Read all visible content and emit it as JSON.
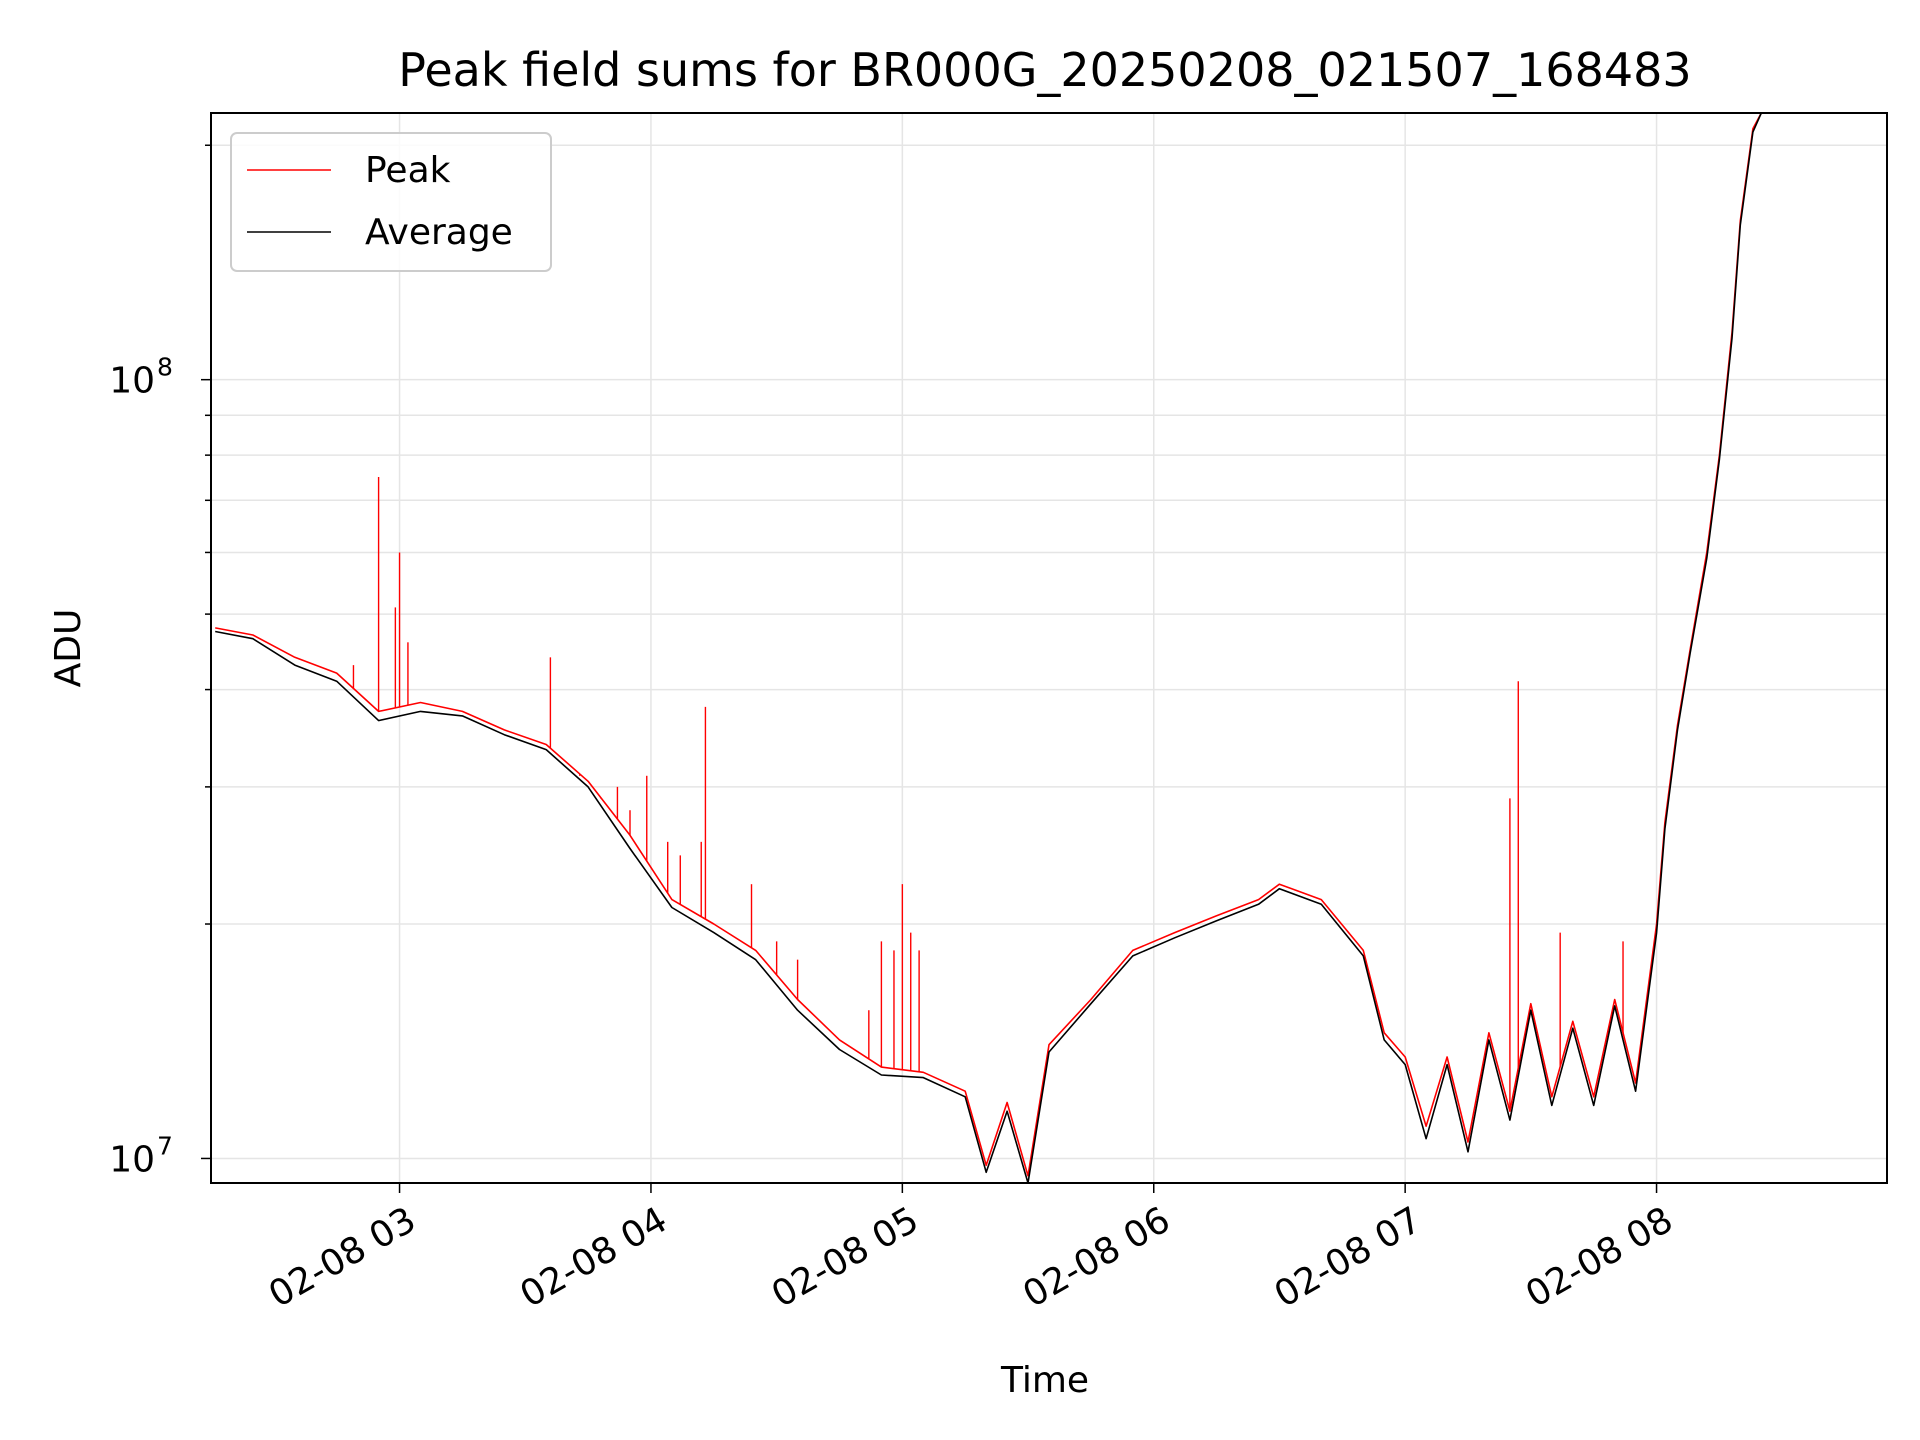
{
  "chart_data": {
    "type": "line",
    "title": "Peak field sums for BR000G_20250208_021507_168483",
    "xlabel": "Time",
    "ylabel": "ADU",
    "yscale": "log",
    "xlim": [
      "2025-02-08 02:15",
      "2025-02-08 08:55"
    ],
    "ylim": [
      9300000,
      220000000
    ],
    "grid": true,
    "legend": {
      "placement": "top-left"
    },
    "xticks": [
      {
        "value": "2025-02-08 03:00",
        "label": "02-08 03"
      },
      {
        "value": "2025-02-08 04:00",
        "label": "02-08 04"
      },
      {
        "value": "2025-02-08 05:00",
        "label": "02-08 05"
      },
      {
        "value": "2025-02-08 06:00",
        "label": "02-08 06"
      },
      {
        "value": "2025-02-08 07:00",
        "label": "02-08 07"
      },
      {
        "value": "2025-02-08 08:00",
        "label": "02-08 08"
      }
    ],
    "yticks": [
      {
        "value": 10000000,
        "base": "10",
        "exp": "7"
      },
      {
        "value": 100000000,
        "base": "10",
        "exp": "8"
      }
    ],
    "series": [
      {
        "name": "Peak",
        "color": "#ff0000",
        "points": [
          [
            "2025-02-08 02:16",
            48000000
          ],
          [
            "2025-02-08 02:25",
            47000000
          ],
          [
            "2025-02-08 02:35",
            44000000
          ],
          [
            "2025-02-08 02:45",
            42000000
          ],
          [
            "2025-02-08 02:55",
            37500000
          ],
          [
            "2025-02-08 03:05",
            38500000
          ],
          [
            "2025-02-08 03:15",
            37500000
          ],
          [
            "2025-02-08 03:25",
            35500000
          ],
          [
            "2025-02-08 03:35",
            34000000
          ],
          [
            "2025-02-08 03:45",
            30500000
          ],
          [
            "2025-02-08 03:55",
            26000000
          ],
          [
            "2025-02-08 04:05",
            21500000
          ],
          [
            "2025-02-08 04:15",
            20000000
          ],
          [
            "2025-02-08 04:25",
            18500000
          ],
          [
            "2025-02-08 04:35",
            16000000
          ],
          [
            "2025-02-08 04:45",
            14200000
          ],
          [
            "2025-02-08 04:55",
            13100000
          ],
          [
            "2025-02-08 05:05",
            12900000
          ],
          [
            "2025-02-08 05:15",
            12200000
          ],
          [
            "2025-02-08 05:20",
            9800000
          ],
          [
            "2025-02-08 05:25",
            11800000
          ],
          [
            "2025-02-08 05:30",
            9500000
          ],
          [
            "2025-02-08 05:35",
            14000000
          ],
          [
            "2025-02-08 05:45",
            16000000
          ],
          [
            "2025-02-08 05:55",
            18500000
          ],
          [
            "2025-02-08 06:05",
            19500000
          ],
          [
            "2025-02-08 06:15",
            20500000
          ],
          [
            "2025-02-08 06:25",
            21500000
          ],
          [
            "2025-02-08 06:30",
            22500000
          ],
          [
            "2025-02-08 06:40",
            21500000
          ],
          [
            "2025-02-08 06:50",
            18500000
          ],
          [
            "2025-02-08 06:55",
            14500000
          ],
          [
            "2025-02-08 07:00",
            13500000
          ],
          [
            "2025-02-08 07:05",
            11000000
          ],
          [
            "2025-02-08 07:10",
            13500000
          ],
          [
            "2025-02-08 07:15",
            10500000
          ],
          [
            "2025-02-08 07:20",
            14500000
          ],
          [
            "2025-02-08 07:25",
            11500000
          ],
          [
            "2025-02-08 07:30",
            15800000
          ],
          [
            "2025-02-08 07:35",
            12000000
          ],
          [
            "2025-02-08 07:40",
            15000000
          ],
          [
            "2025-02-08 07:45",
            12000000
          ],
          [
            "2025-02-08 07:50",
            16000000
          ],
          [
            "2025-02-08 07:55",
            12500000
          ],
          [
            "2025-02-08 08:00",
            20000000
          ],
          [
            "2025-02-08 08:02",
            27000000
          ],
          [
            "2025-02-08 08:05",
            36000000
          ],
          [
            "2025-02-08 08:08",
            45000000
          ],
          [
            "2025-02-08 08:12",
            60000000
          ],
          [
            "2025-02-08 08:15",
            80000000
          ],
          [
            "2025-02-08 08:18",
            115000000
          ],
          [
            "2025-02-08 08:20",
            160000000
          ],
          [
            "2025-02-08 08:23",
            210000000
          ],
          [
            "2025-02-08 08:25",
            220000000
          ]
        ],
        "spikes": [
          [
            "2025-02-08 02:55",
            75000000
          ],
          [
            "2025-02-08 03:00",
            60000000
          ],
          [
            "2025-02-08 02:59",
            51000000
          ],
          [
            "2025-02-08 03:02",
            46000000
          ],
          [
            "2025-02-08 02:49",
            43000000
          ],
          [
            "2025-02-08 03:36",
            44000000
          ],
          [
            "2025-02-08 03:43",
            31000000
          ],
          [
            "2025-02-08 03:48",
            29000000
          ],
          [
            "2025-02-08 03:52",
            30000000
          ],
          [
            "2025-02-08 03:55",
            28000000
          ],
          [
            "2025-02-08 03:59",
            31000000
          ],
          [
            "2025-02-08 04:13",
            38000000
          ],
          [
            "2025-02-08 04:12",
            25500000
          ],
          [
            "2025-02-08 04:07",
            24500000
          ],
          [
            "2025-02-08 04:04",
            25500000
          ],
          [
            "2025-02-08 04:24",
            22500000
          ],
          [
            "2025-02-08 04:30",
            19000000
          ],
          [
            "2025-02-08 04:35",
            18000000
          ],
          [
            "2025-02-08 04:52",
            15500000
          ],
          [
            "2025-02-08 04:55",
            19000000
          ],
          [
            "2025-02-08 04:58",
            18500000
          ],
          [
            "2025-02-08 05:00",
            22500000
          ],
          [
            "2025-02-08 05:02",
            19500000
          ],
          [
            "2025-02-08 05:04",
            18500000
          ],
          [
            "2025-02-08 07:25",
            29000000
          ],
          [
            "2025-02-08 07:27",
            41000000
          ],
          [
            "2025-02-08 07:37",
            19500000
          ],
          [
            "2025-02-08 07:52",
            19000000
          ]
        ]
      },
      {
        "name": "Average",
        "color": "#000000",
        "points": [
          [
            "2025-02-08 02:16",
            47500000
          ],
          [
            "2025-02-08 02:25",
            46500000
          ],
          [
            "2025-02-08 02:35",
            43000000
          ],
          [
            "2025-02-08 02:45",
            41000000
          ],
          [
            "2025-02-08 02:55",
            36500000
          ],
          [
            "2025-02-08 03:05",
            37500000
          ],
          [
            "2025-02-08 03:15",
            37000000
          ],
          [
            "2025-02-08 03:25",
            35000000
          ],
          [
            "2025-02-08 03:35",
            33500000
          ],
          [
            "2025-02-08 03:45",
            30000000
          ],
          [
            "2025-02-08 03:55",
            25000000
          ],
          [
            "2025-02-08 04:05",
            21000000
          ],
          [
            "2025-02-08 04:15",
            19500000
          ],
          [
            "2025-02-08 04:25",
            18000000
          ],
          [
            "2025-02-08 04:35",
            15500000
          ],
          [
            "2025-02-08 04:45",
            13800000
          ],
          [
            "2025-02-08 04:55",
            12800000
          ],
          [
            "2025-02-08 05:05",
            12700000
          ],
          [
            "2025-02-08 05:15",
            12000000
          ],
          [
            "2025-02-08 05:20",
            9600000
          ],
          [
            "2025-02-08 05:25",
            11500000
          ],
          [
            "2025-02-08 05:30",
            9300000
          ],
          [
            "2025-02-08 05:35",
            13700000
          ],
          [
            "2025-02-08 05:45",
            15800000
          ],
          [
            "2025-02-08 05:55",
            18200000
          ],
          [
            "2025-02-08 06:05",
            19200000
          ],
          [
            "2025-02-08 06:15",
            20200000
          ],
          [
            "2025-02-08 06:25",
            21200000
          ],
          [
            "2025-02-08 06:30",
            22200000
          ],
          [
            "2025-02-08 06:40",
            21200000
          ],
          [
            "2025-02-08 06:50",
            18200000
          ],
          [
            "2025-02-08 06:55",
            14200000
          ],
          [
            "2025-02-08 07:00",
            13200000
          ],
          [
            "2025-02-08 07:05",
            10600000
          ],
          [
            "2025-02-08 07:10",
            13200000
          ],
          [
            "2025-02-08 07:15",
            10200000
          ],
          [
            "2025-02-08 07:20",
            14200000
          ],
          [
            "2025-02-08 07:25",
            11200000
          ],
          [
            "2025-02-08 07:30",
            15500000
          ],
          [
            "2025-02-08 07:35",
            11700000
          ],
          [
            "2025-02-08 07:40",
            14700000
          ],
          [
            "2025-02-08 07:45",
            11700000
          ],
          [
            "2025-02-08 07:50",
            15700000
          ],
          [
            "2025-02-08 07:55",
            12200000
          ],
          [
            "2025-02-08 08:00",
            19500000
          ],
          [
            "2025-02-08 08:02",
            26500000
          ],
          [
            "2025-02-08 08:05",
            35500000
          ],
          [
            "2025-02-08 08:08",
            44500000
          ],
          [
            "2025-02-08 08:12",
            59000000
          ],
          [
            "2025-02-08 08:15",
            79000000
          ],
          [
            "2025-02-08 08:18",
            113000000
          ],
          [
            "2025-02-08 08:20",
            158000000
          ],
          [
            "2025-02-08 08:23",
            208000000
          ],
          [
            "2025-02-08 08:25",
            220000000
          ]
        ]
      }
    ]
  }
}
